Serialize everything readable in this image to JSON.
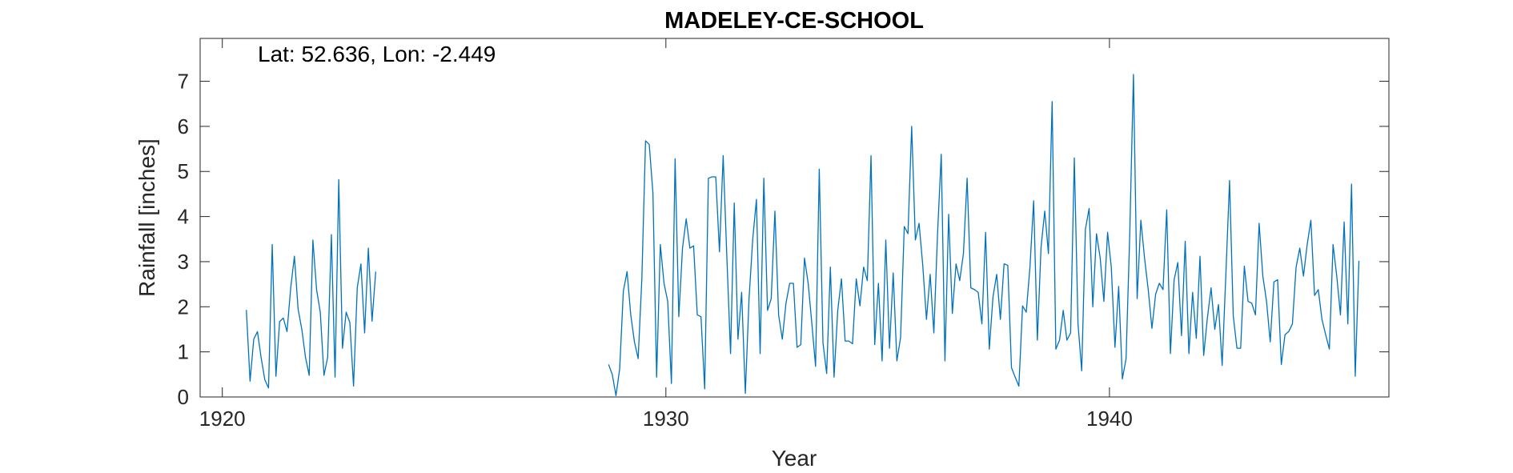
{
  "chart_data": {
    "type": "line",
    "title": "MADELEY-CE-SCHOOL",
    "annotation": "Lat: 52.636, Lon: -2.449",
    "xlabel": "Year",
    "ylabel": "Rainfall [inches]",
    "xlim": [
      1919.5,
      1946.3
    ],
    "ylim": [
      0,
      7.95
    ],
    "xticks": [
      1920,
      1930,
      1940
    ],
    "yticks": [
      0,
      1,
      2,
      3,
      4,
      5,
      6,
      7
    ],
    "grid": false,
    "series_color": "#0072bd",
    "series": [
      {
        "segments": [
          {
            "start": 1920.542,
            "step": 0.08333,
            "values": [
              1.93,
              0.35,
              1.28,
              1.45,
              0.87,
              0.38,
              0.2,
              3.38,
              0.46,
              1.67,
              1.75,
              1.45,
              2.42,
              3.12,
              1.95,
              1.5,
              0.88,
              0.48,
              3.48,
              2.38,
              1.88,
              0.48,
              0.88,
              3.6,
              0.44,
              4.82,
              1.08,
              1.88,
              1.65,
              0.24,
              2.42,
              2.95,
              1.42,
              3.3,
              1.68,
              2.78
            ]
          },
          {
            "start": 1928.708,
            "step": 0.08333,
            "values": [
              0.72,
              0.5,
              0.03,
              0.62,
              2.35,
              2.78,
              1.82,
              1.22,
              0.85,
              2.62,
              5.68,
              5.6,
              4.52,
              0.44,
              3.38,
              2.52,
              2.12,
              0.3,
              5.28,
              1.78,
              3.3,
              3.95,
              3.3,
              3.35,
              1.82,
              1.78,
              0.18,
              4.85,
              4.88,
              4.88,
              3.22,
              5.35,
              3.1,
              0.96,
              4.3,
              1.28,
              2.32,
              0.08,
              2.18,
              3.5,
              4.38,
              0.96,
              4.85,
              1.92,
              2.18,
              4.12,
              1.82,
              1.28,
              2.08,
              2.52,
              2.52,
              1.1,
              1.16,
              3.08,
              2.52,
              1.62,
              0.68,
              5.05,
              1.2,
              0.52,
              2.88,
              0.44,
              1.92,
              2.62,
              1.24,
              1.24,
              1.18,
              2.62,
              2.02,
              2.88,
              2.58,
              5.35,
              1.16,
              2.52,
              0.8,
              3.48,
              1.08,
              2.75,
              0.8,
              1.32,
              3.78,
              3.62,
              6.0,
              3.48,
              3.85,
              2.92,
              1.72,
              2.72,
              1.42,
              3.62,
              5.38,
              0.8,
              4.05,
              1.85,
              2.95,
              2.58,
              3.18,
              4.85,
              2.42,
              2.38,
              2.32,
              1.62,
              3.65,
              1.06,
              2.22,
              2.72,
              1.72,
              2.95,
              2.92,
              0.65,
              0.44,
              0.24,
              2.02,
              1.88,
              2.88,
              4.35,
              1.26,
              3.32,
              4.12,
              3.18,
              6.55,
              1.06,
              1.26,
              1.92,
              1.26,
              1.42,
              5.3,
              1.62,
              0.58,
              3.72,
              4.18,
              2.0,
              3.62,
              3.08,
              2.12,
              3.65,
              2.88,
              1.1,
              2.45,
              0.4,
              0.85,
              3.62,
              7.15,
              2.18,
              3.92,
              3.08,
              2.38,
              1.52,
              2.28,
              2.52,
              2.38,
              4.15,
              0.96,
              2.6,
              2.98,
              1.36,
              3.45,
              0.96,
              2.32,
              1.3,
              3.12,
              0.92,
              1.75,
              2.42,
              1.5,
              2.05,
              0.7,
              2.72,
              4.8,
              1.8,
              1.08,
              1.08,
              2.9,
              2.12,
              2.08,
              1.82,
              3.85,
              2.68,
              2.12,
              1.22,
              2.55,
              2.6,
              0.72,
              1.38,
              1.45,
              1.62,
              2.88,
              3.3,
              2.68,
              3.38,
              3.92,
              2.25,
              2.38,
              1.72,
              1.38,
              1.06,
              3.38,
              2.68,
              1.82,
              3.88,
              1.62,
              4.72,
              0.46,
              3.02
            ]
          }
        ]
      }
    ]
  }
}
